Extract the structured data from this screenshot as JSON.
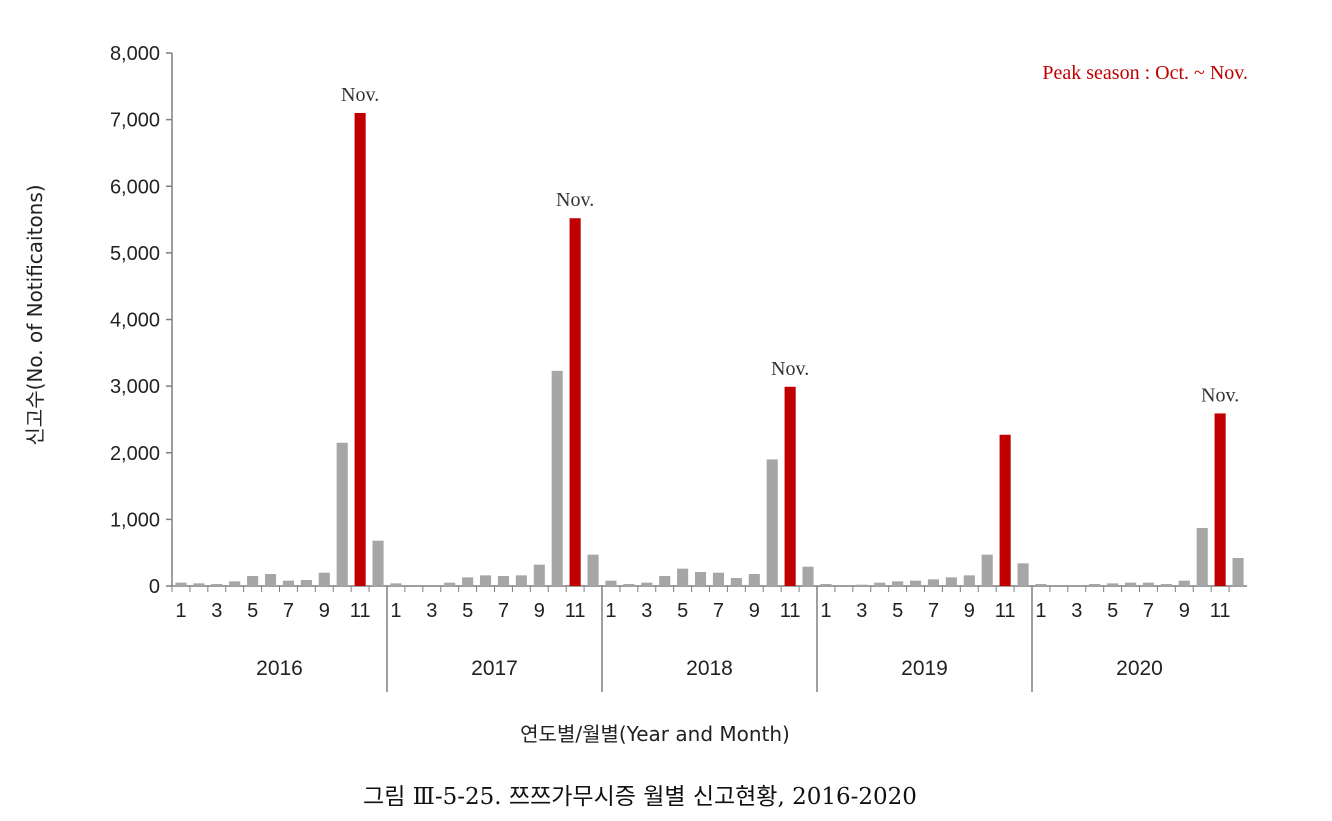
{
  "chart_data": {
    "type": "bar",
    "title": "",
    "xlabel": "연도별/월별(Year and Month)",
    "ylabel": "신고수(No. of Notificaitons)",
    "ylim": [
      0,
      8000
    ],
    "yticks": [
      0,
      1000,
      2000,
      3000,
      4000,
      5000,
      6000,
      7000,
      8000
    ],
    "ytick_labels": [
      "0",
      "1,000",
      "2,000",
      "3,000",
      "4,000",
      "5,000",
      "6,000",
      "7,000",
      "8,000"
    ],
    "month_tick_labels": [
      "1",
      "3",
      "5",
      "7",
      "9",
      "11"
    ],
    "grid": false,
    "highlight_color": "#c00000",
    "base_color": "#a6a6a6",
    "annotation_text": "Nov.",
    "peak_note": "Peak season : Oct. ~ Nov.",
    "caption": "그림 Ⅲ-5-25. 쯔쯔가무시증 월별 신고현황, 2016-2020",
    "years": [
      {
        "year": "2016",
        "values": [
          50,
          40,
          30,
          70,
          150,
          180,
          80,
          90,
          200,
          2150,
          7100,
          680
        ],
        "highlight_month": 11,
        "annotated": true
      },
      {
        "year": "2017",
        "values": [
          40,
          0,
          0,
          50,
          130,
          160,
          150,
          160,
          320,
          3230,
          5520,
          470
        ],
        "highlight_month": 11,
        "annotated": true
      },
      {
        "year": "2018",
        "values": [
          80,
          30,
          50,
          150,
          260,
          210,
          200,
          120,
          180,
          1900,
          2990,
          290
        ],
        "highlight_month": 11,
        "annotated": true
      },
      {
        "year": "2019",
        "values": [
          30,
          0,
          20,
          50,
          70,
          80,
          100,
          130,
          160,
          470,
          2270,
          340
        ],
        "highlight_month": 11,
        "annotated": false
      },
      {
        "year": "2020",
        "values": [
          30,
          0,
          0,
          30,
          40,
          50,
          50,
          30,
          80,
          870,
          2590,
          420
        ],
        "highlight_month": 11,
        "annotated": true
      }
    ]
  }
}
